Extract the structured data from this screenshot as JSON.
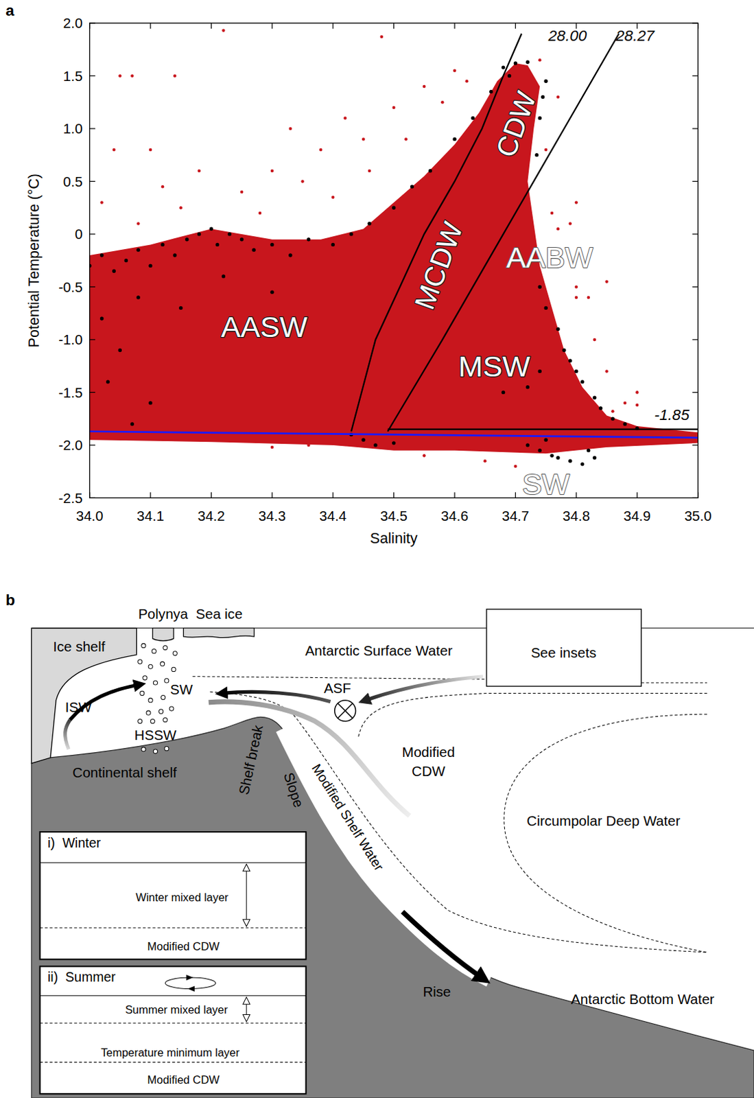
{
  "chart_data": {
    "type": "scatter",
    "panel_label": "a",
    "x_label": "Salinity",
    "y_label": "Potential Temperature (°C)",
    "xlim": [
      34,
      35
    ],
    "ylim": [
      -2.5,
      2
    ],
    "xticks": [
      {
        "value": 34,
        "label": "34.0"
      },
      34.1,
      34.2,
      34.3,
      34.4,
      34.5,
      34.6,
      34.7,
      34.8,
      34.9,
      {
        "value": 35,
        "label": "35.0"
      }
    ],
    "yticks": [
      {
        "value": 2,
        "label": "2.0"
      },
      1.5,
      {
        "value": 1,
        "label": "1.0"
      },
      0.5,
      0,
      -0.5,
      {
        "value": -1,
        "label": "-1.0"
      },
      -1.5,
      {
        "value": -2,
        "label": "-2.0"
      },
      -2.5
    ],
    "series": [
      {
        "type": "polygon",
        "color": "#c8161d",
        "x": [
          34.0,
          34.05,
          34.1,
          34.2,
          34.3,
          34.38,
          34.45,
          34.5,
          34.55,
          34.6,
          34.64,
          34.67,
          34.7,
          34.72,
          34.74,
          34.73,
          34.72,
          34.73,
          34.74,
          34.76,
          34.78,
          34.81,
          34.85,
          34.9,
          35.0,
          35.0,
          34.85,
          34.75,
          34.6,
          34.5,
          34.4,
          34.2,
          34.0
        ],
        "values": [
          -0.2,
          -0.15,
          -0.1,
          0.05,
          -0.05,
          -0.05,
          0.05,
          0.3,
          0.55,
          0.85,
          1.15,
          1.45,
          1.62,
          1.6,
          1.4,
          1.0,
          0.5,
          0.1,
          -0.3,
          -0.7,
          -1.1,
          -1.45,
          -1.72,
          -1.82,
          -1.88,
          -1.98,
          -2.02,
          -2.08,
          -2.05,
          -2.05,
          -2.0,
          -1.97,
          -1.95
        ]
      },
      {
        "type": "scatter",
        "color": "#c8161d",
        "marker": "circle",
        "x": [
          34.05,
          34.07,
          34.14,
          34.22,
          34.48,
          34.1,
          34.12,
          34.18,
          34.25,
          34.3,
          34.35,
          34.38,
          34.4,
          34.42,
          34.45,
          34.5,
          34.55,
          34.6,
          34.33,
          34.28,
          34.02,
          34.08,
          34.04,
          34.15,
          34.46,
          34.52,
          34.58,
          34.62,
          34.8,
          34.82,
          34.85,
          34.77,
          34.79,
          34.8,
          34.76,
          34.83,
          34.85,
          34.9,
          34.9,
          34.88,
          34.86,
          34.7,
          34.65,
          34.55,
          34.3,
          34.77,
          34.75,
          34.8,
          34.36,
          34.74
        ],
        "values": [
          1.5,
          1.5,
          1.5,
          1.93,
          1.87,
          0.8,
          0.45,
          0.6,
          0.4,
          0.6,
          0.5,
          0.8,
          0.35,
          1.1,
          0.9,
          1.2,
          1.4,
          1.55,
          1.0,
          0.2,
          0.3,
          0.1,
          0.8,
          0.25,
          0.6,
          0.9,
          1.25,
          1.45,
          -0.6,
          -0.6,
          -0.45,
          0.05,
          0.1,
          -0.5,
          0.2,
          -1.0,
          -1.3,
          -1.5,
          -1.62,
          -1.6,
          -1.68,
          -2.2,
          -2.15,
          -2.1,
          -2.02,
          1.3,
          0.8,
          0.3,
          -2.0,
          1.65
        ]
      },
      {
        "type": "scatter",
        "color": "#000000",
        "marker": "circle",
        "x": [
          34.0,
          34.02,
          34.04,
          34.06,
          34.08,
          34.1,
          34.12,
          34.14,
          34.16,
          34.18,
          34.2,
          34.21,
          34.23,
          34.25,
          34.27,
          34.3,
          34.33,
          34.36,
          34.4,
          34.43,
          34.46,
          34.5,
          34.53,
          34.56,
          34.6,
          34.63,
          34.66,
          34.69,
          34.72,
          34.745,
          34.75,
          34.74,
          34.735,
          34.74,
          34.75,
          34.77,
          34.78,
          34.79,
          34.8,
          34.81,
          34.83,
          34.84,
          34.86,
          34.88,
          34.9,
          34.74,
          34.72,
          34.68,
          34.74,
          34.76,
          34.77,
          34.79,
          34.81,
          34.83,
          34.82,
          34.75,
          34.72,
          34.45,
          34.47,
          34.5,
          34.43,
          34.02,
          34.05,
          34.03,
          34.08,
          34.1,
          34.15,
          34.07,
          34.22,
          34.3,
          34.68,
          34.7
        ],
        "values": [
          -0.3,
          -0.2,
          -0.35,
          -0.25,
          -0.15,
          -0.3,
          -0.1,
          -0.2,
          -0.05,
          0.0,
          0.05,
          -0.1,
          0.0,
          -0.05,
          -0.15,
          -0.1,
          -0.2,
          -0.05,
          -0.1,
          0.0,
          0.1,
          0.25,
          0.45,
          0.6,
          0.9,
          1.1,
          1.35,
          1.5,
          1.63,
          1.3,
          1.45,
          1.1,
          0.75,
          -0.5,
          -0.7,
          -0.9,
          -1.1,
          -1.2,
          -1.3,
          -1.4,
          -1.55,
          -1.65,
          -1.75,
          -1.8,
          -1.84,
          -1.3,
          -1.45,
          -1.5,
          -2.05,
          -2.1,
          -2.12,
          -2.15,
          -2.18,
          -2.12,
          -2.05,
          -1.95,
          -2.0,
          -1.95,
          -2.0,
          -1.98,
          -1.9,
          -0.8,
          -1.1,
          -1.4,
          -0.6,
          -1.6,
          -0.7,
          -1.8,
          -0.4,
          -0.55,
          1.58,
          1.62
        ]
      },
      {
        "type": "line",
        "color": "#000000",
        "line_style": "solid",
        "x": [
          34.43,
          34.47,
          34.51,
          34.55,
          34.6,
          34.645,
          34.68,
          34.71
        ],
        "values": [
          -1.87,
          -1.0,
          -0.5,
          0.0,
          0.5,
          1.0,
          1.5,
          1.9
        ]
      },
      {
        "type": "line",
        "color": "#000000",
        "line_style": "solid",
        "x": [
          34.49,
          34.58,
          34.68,
          34.78,
          34.87
        ],
        "values": [
          -1.87,
          -1.0,
          0.0,
          1.0,
          1.9
        ]
      },
      {
        "type": "line",
        "color": "#000000",
        "line_style": "solid",
        "x": [
          34.49,
          35.0
        ],
        "values": [
          -1.85,
          -1.85
        ]
      },
      {
        "type": "line",
        "color": "#1a1aff",
        "line_style": "solid",
        "x": [
          34.0,
          35.0
        ],
        "values": [
          -1.87,
          -1.93
        ]
      }
    ],
    "annotations": [
      {
        "text": "AASW",
        "x": 34.287,
        "y": -0.88
      },
      {
        "text": "MCDW",
        "x": 34.574,
        "y": -0.3
      },
      {
        "text": "CDW",
        "x": 34.701,
        "y": 1.04
      },
      {
        "text": "AABW",
        "x": 34.756,
        "y": -0.22
      },
      {
        "text": "MSW",
        "x": 34.665,
        "y": -1.25
      },
      {
        "text": "SW",
        "x": 34.75,
        "y": -2.37
      },
      {
        "text": "28.00",
        "x": 34.754,
        "y": 1.83
      },
      {
        "text": "28.27",
        "x": 34.865,
        "y": 1.83
      },
      {
        "text": "-1.85",
        "x": 34.957,
        "y": -1.76
      }
    ]
  },
  "diagram": {
    "panel_label": "b",
    "labels": [
      "Polynya",
      "Sea ice",
      "Ice shelf",
      "Antarctic Surface Water",
      "See insets",
      "ASF",
      "SW",
      "ISW",
      "HSSW",
      "Continental shelf",
      "Shelf break",
      "Slope",
      "Modified Shelf Water",
      "Modified CDW",
      "Circumpolar Deep Water",
      "Rise",
      "Antarctic Bottom Water"
    ],
    "insets": [
      {
        "title": "i)  Winter",
        "layers": [
          "Winter mixed layer",
          "Modified CDW"
        ]
      },
      {
        "title": "ii)  Summer",
        "layers": [
          "Summer mixed layer",
          "Temperature minimum layer",
          "Modified CDW"
        ]
      }
    ]
  }
}
